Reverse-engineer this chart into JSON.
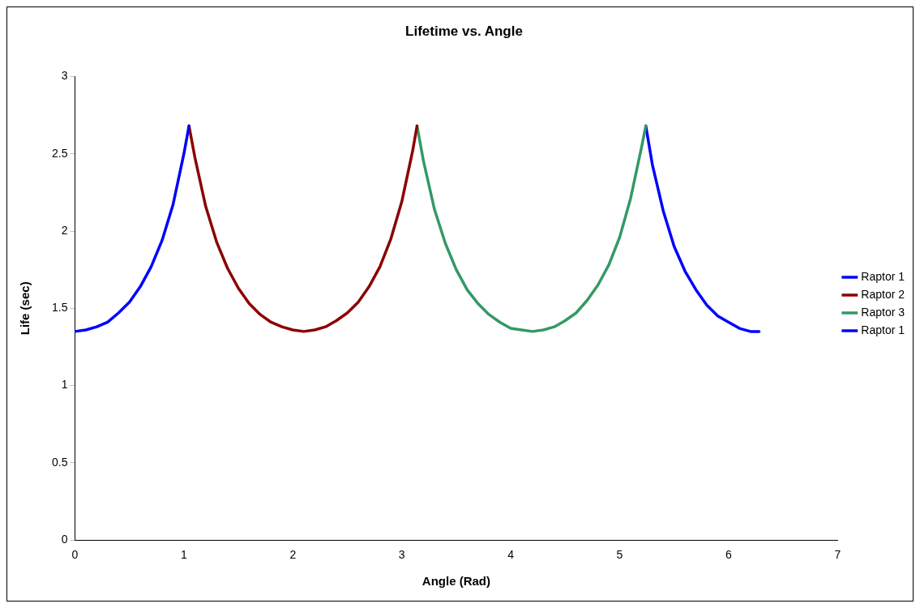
{
  "chart_data": {
    "type": "line",
    "title": "Lifetime vs. Angle",
    "xlabel": "Angle (Rad)",
    "ylabel": "Life (sec)",
    "xlim": [
      0,
      7
    ],
    "xticks": [
      0,
      1,
      2,
      3,
      4,
      5,
      6,
      7
    ],
    "ylim": [
      0,
      3
    ],
    "yticks": [
      0,
      0.5,
      1,
      1.5,
      2,
      2.5,
      3
    ],
    "grid": false,
    "legend": "right",
    "marker": "none",
    "line_style": "solid",
    "series": [
      {
        "name": "Raptor 1",
        "color": "#0000ff",
        "x": [
          0,
          0.1,
          0.2,
          0.3,
          0.4,
          0.5,
          0.6,
          0.7,
          0.8,
          0.9,
          1.0,
          1.047
        ],
        "values": [
          1.35,
          1.36,
          1.38,
          1.41,
          1.47,
          1.54,
          1.64,
          1.77,
          1.94,
          2.17,
          2.5,
          2.68
        ]
      },
      {
        "name": "Raptor 2",
        "color": "#8b0000",
        "x": [
          1.047,
          1.1,
          1.2,
          1.3,
          1.4,
          1.5,
          1.6,
          1.7,
          1.8,
          1.9,
          2.0,
          2.1,
          2.2,
          2.3,
          2.4,
          2.5,
          2.6,
          2.7,
          2.8,
          2.9,
          3.0,
          3.1,
          3.14
        ],
        "values": [
          2.68,
          2.48,
          2.16,
          1.93,
          1.76,
          1.63,
          1.53,
          1.46,
          1.41,
          1.38,
          1.36,
          1.35,
          1.36,
          1.38,
          1.42,
          1.47,
          1.54,
          1.64,
          1.77,
          1.95,
          2.19,
          2.52,
          2.68
        ]
      },
      {
        "name": "Raptor 3",
        "color": "#339966",
        "x": [
          3.14,
          3.2,
          3.3,
          3.4,
          3.5,
          3.6,
          3.7,
          3.8,
          3.9,
          4.0,
          4.1,
          4.2,
          4.3,
          4.4,
          4.5,
          4.6,
          4.7,
          4.8,
          4.9,
          5.0,
          5.1,
          5.2,
          5.24
        ],
        "values": [
          2.68,
          2.45,
          2.14,
          1.92,
          1.75,
          1.62,
          1.53,
          1.46,
          1.41,
          1.37,
          1.36,
          1.35,
          1.36,
          1.38,
          1.42,
          1.47,
          1.55,
          1.65,
          1.78,
          1.96,
          2.21,
          2.54,
          2.68
        ]
      },
      {
        "name": "Raptor 1",
        "color": "#0000ff",
        "x": [
          5.24,
          5.3,
          5.4,
          5.5,
          5.6,
          5.7,
          5.8,
          5.9,
          6.0,
          6.1,
          6.2,
          6.28
        ],
        "values": [
          2.68,
          2.43,
          2.13,
          1.9,
          1.74,
          1.62,
          1.52,
          1.45,
          1.41,
          1.37,
          1.35,
          1.35
        ]
      }
    ]
  }
}
